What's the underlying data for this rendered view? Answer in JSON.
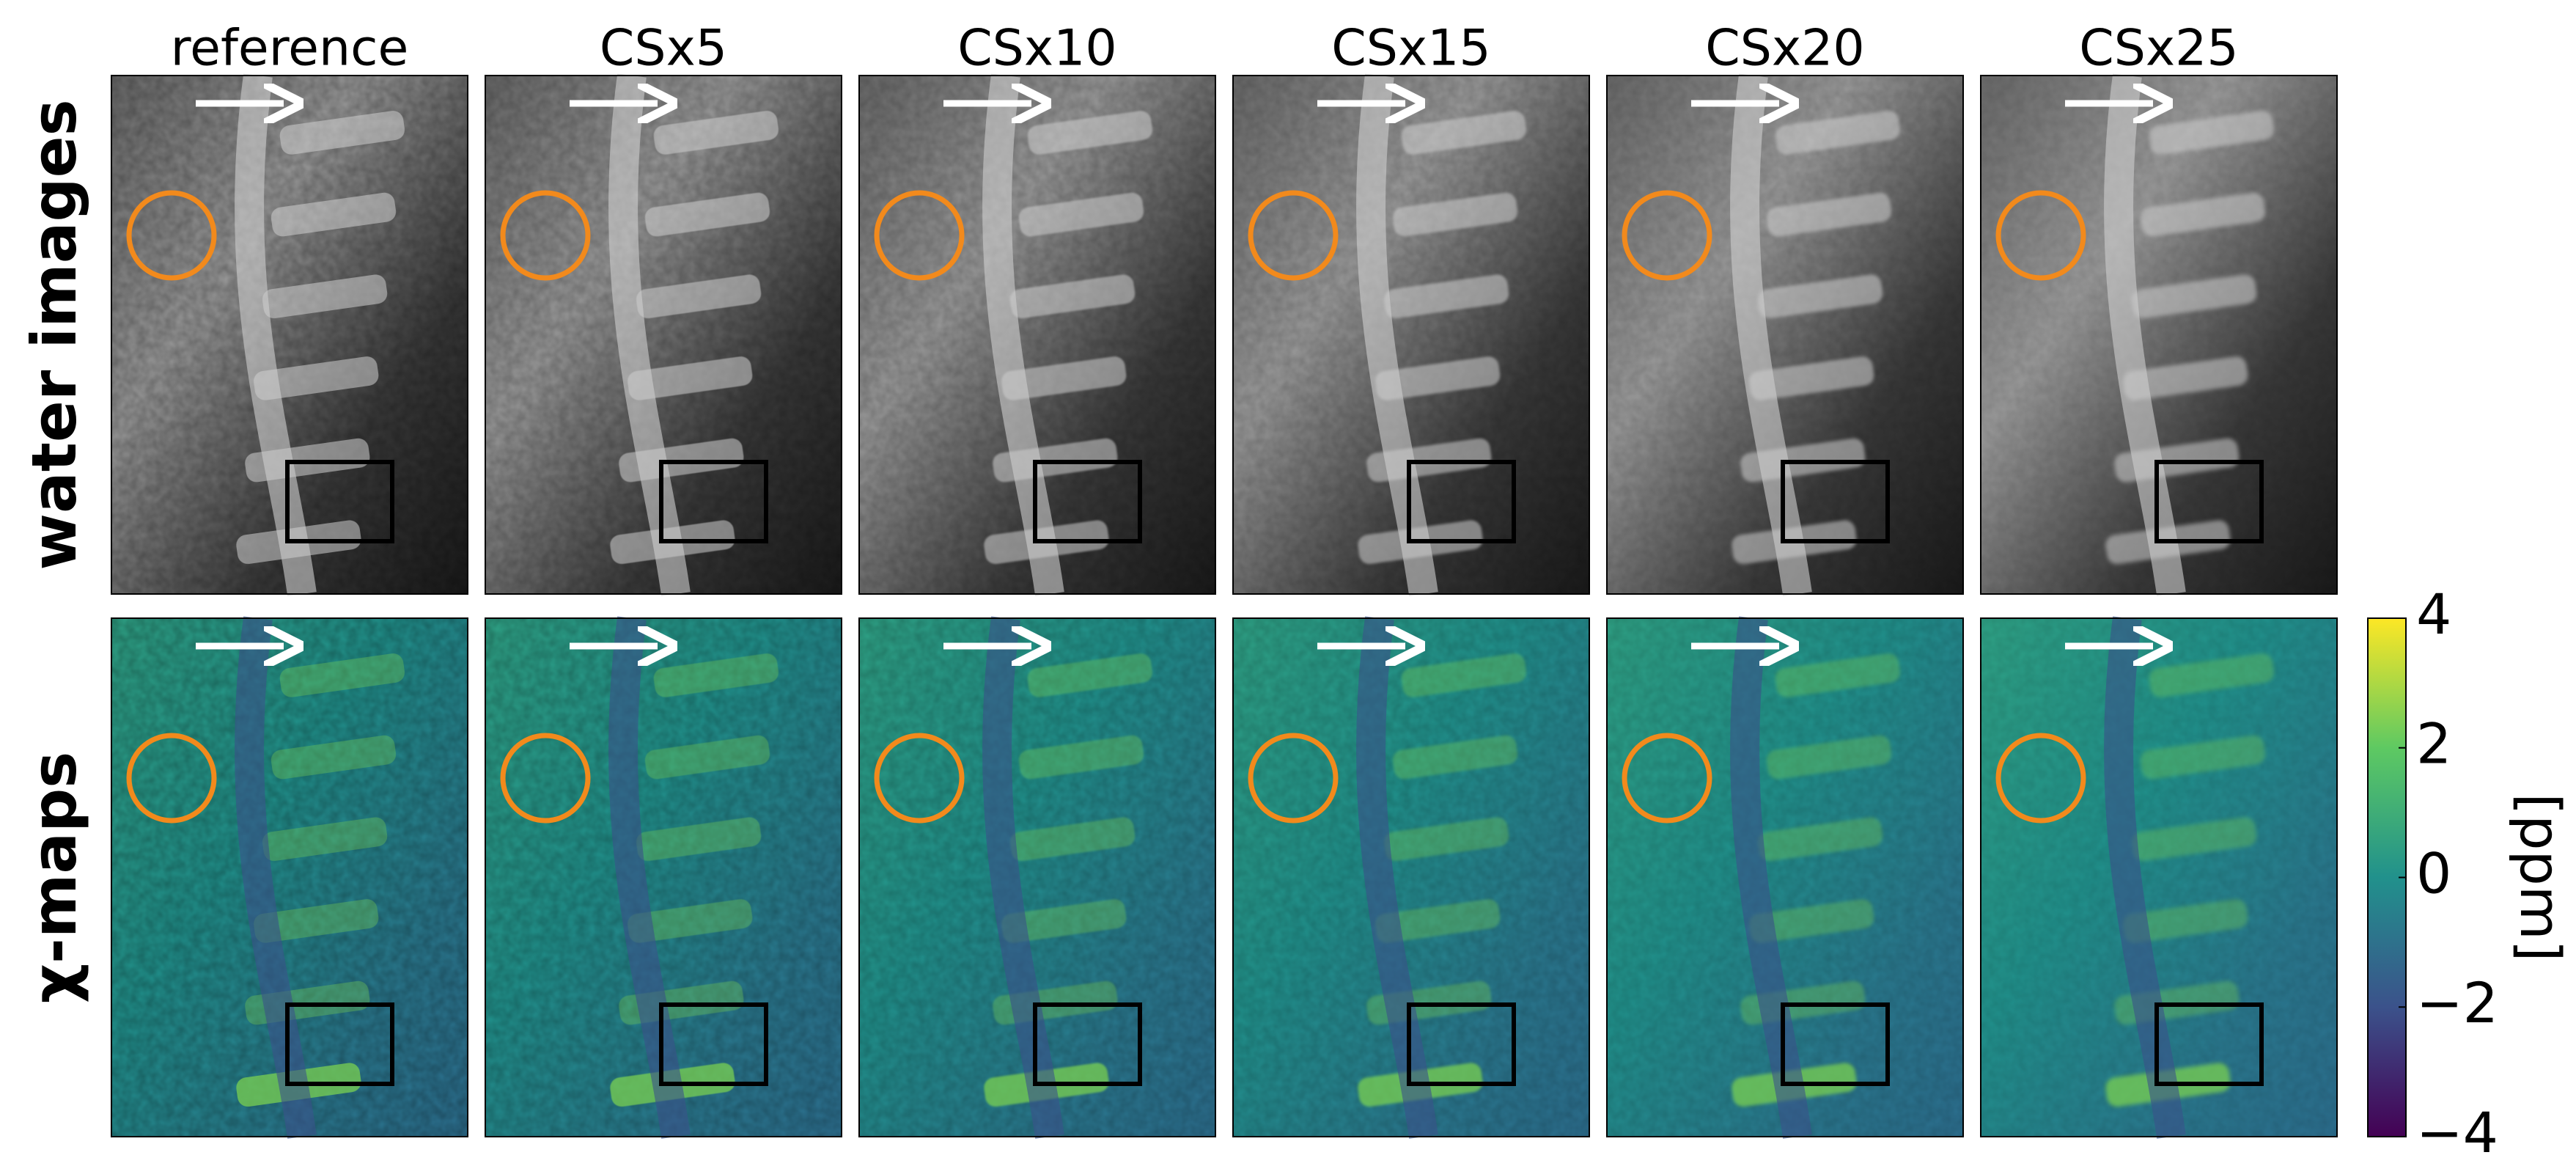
{
  "columns": [
    "reference",
    "CSx5",
    "CSx10",
    "CSx15",
    "CSx20",
    "CSx25"
  ],
  "rows": [
    "water images",
    "χ-maps"
  ],
  "colorbar": {
    "label": "[ppm]",
    "lim": [
      -4,
      4
    ],
    "ticks": [
      {
        "value": -4,
        "label": "−4"
      },
      {
        "value": -2,
        "label": "−2"
      },
      0,
      2,
      4
    ]
  }
}
